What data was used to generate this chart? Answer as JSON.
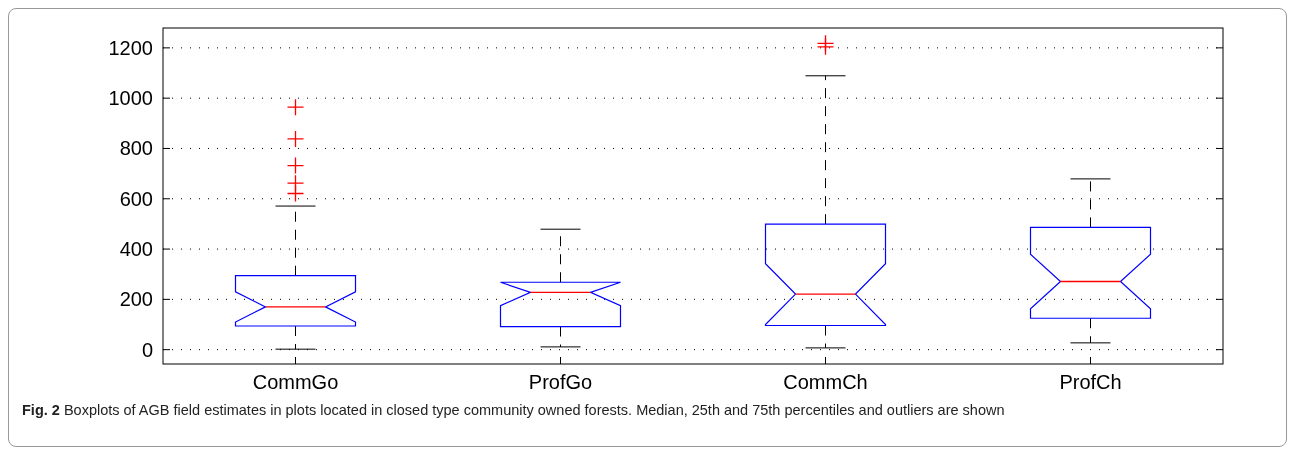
{
  "chart_data": {
    "type": "box",
    "title": "Fig. 2",
    "annotations": [
      "Boxplots of AGB field estimates in plots located in closed type community owned forests. Median, 25th and 75th percentiles and outliers are shown"
    ],
    "categories": [
      "CommGo",
      "ProfGo",
      "CommCh",
      "ProfCh"
    ],
    "boxes": [
      {
        "low": 2,
        "q1": 94,
        "median": 170,
        "q3": 294,
        "high": 571,
        "outliers": [
          621,
          662,
          732,
          838,
          964
        ]
      },
      {
        "low": 11,
        "q1": 92,
        "median": 228,
        "q3": 268,
        "high": 479
      },
      {
        "low": 7,
        "q1": 96,
        "median": 221,
        "q3": 499,
        "high": 1089,
        "outliers": [
          1204,
          1218
        ]
      },
      {
        "low": 27,
        "q1": 125,
        "median": 271,
        "q3": 486,
        "high": 679
      }
    ],
    "color": "#0000ff",
    "marker": "cross",
    "ylim": [
      -57,
      1279
    ],
    "yticks": [
      0,
      200,
      400,
      600,
      800,
      1000,
      1200
    ],
    "grid": "y"
  }
}
